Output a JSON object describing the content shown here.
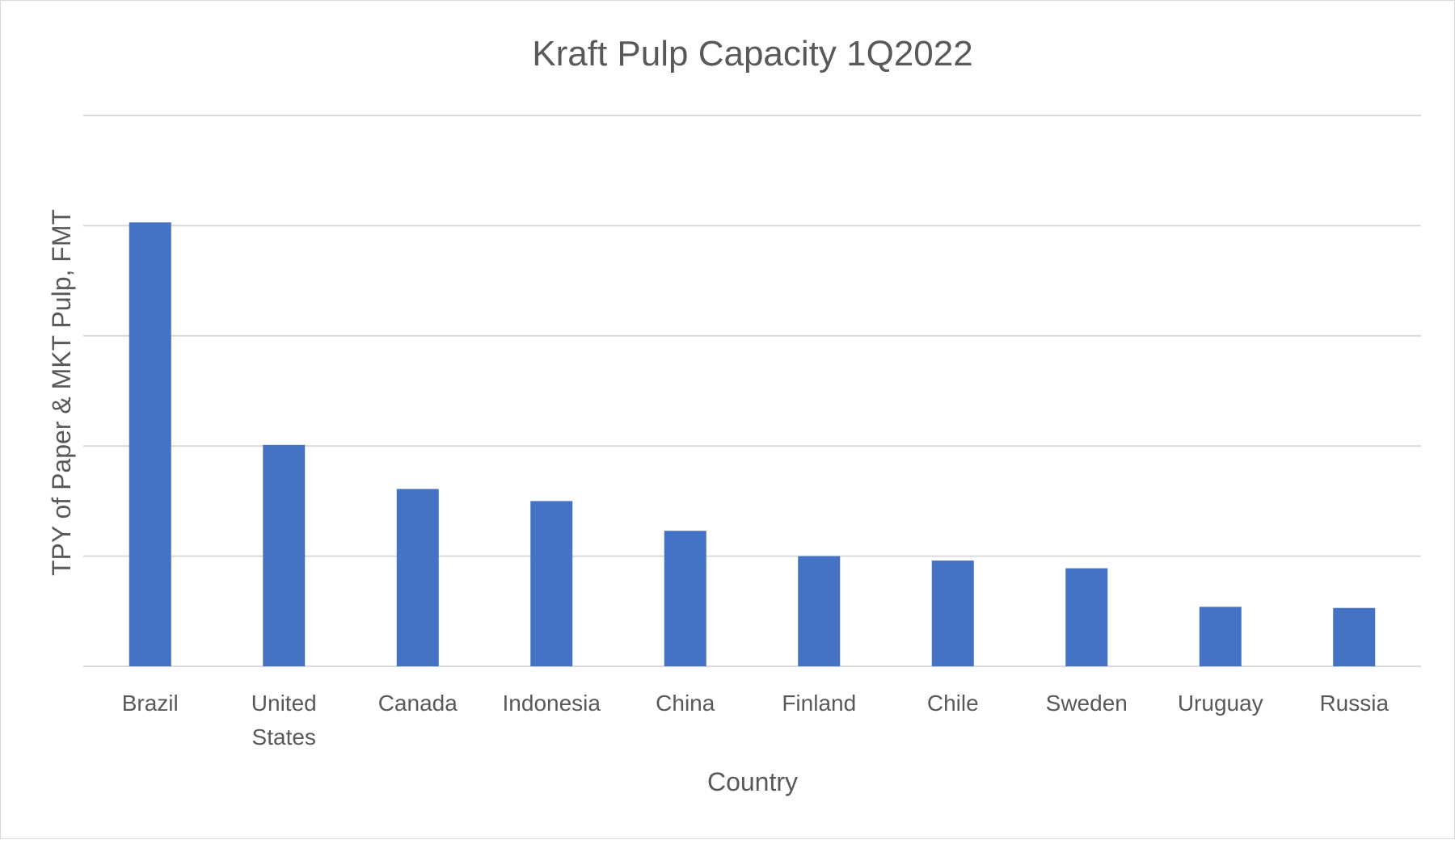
{
  "chart_data": {
    "type": "bar",
    "title": "Kraft Pulp Capacity 1Q2022",
    "xlabel": "Country",
    "ylabel": "TPY of Paper & MKT Pulp, FMT",
    "categories": [
      "Brazil",
      "United States",
      "Canada",
      "Indonesia",
      "China",
      "Finland",
      "Chile",
      "Sweden",
      "Uruguay",
      "Russia"
    ],
    "category_lines": [
      [
        "Brazil"
      ],
      [
        "United",
        "States"
      ],
      [
        "Canada"
      ],
      [
        "Indonesia"
      ],
      [
        "China"
      ],
      [
        "Finland"
      ],
      [
        "Chile"
      ],
      [
        "Sweden"
      ],
      [
        "Uruguay"
      ],
      [
        "Russia"
      ]
    ],
    "values": [
      4.03,
      2.01,
      1.61,
      1.5,
      1.23,
      1.0,
      0.96,
      0.89,
      0.54,
      0.53
    ],
    "value_units_note": "",
    "ylim": [
      0,
      5
    ],
    "y_gridlines": [
      0,
      1,
      2,
      3,
      4,
      5
    ],
    "y_tick_labels_shown": false,
    "grid": true,
    "legend": "none",
    "bar_color": "#4472c4",
    "grid_color": "#d9d9d9"
  }
}
